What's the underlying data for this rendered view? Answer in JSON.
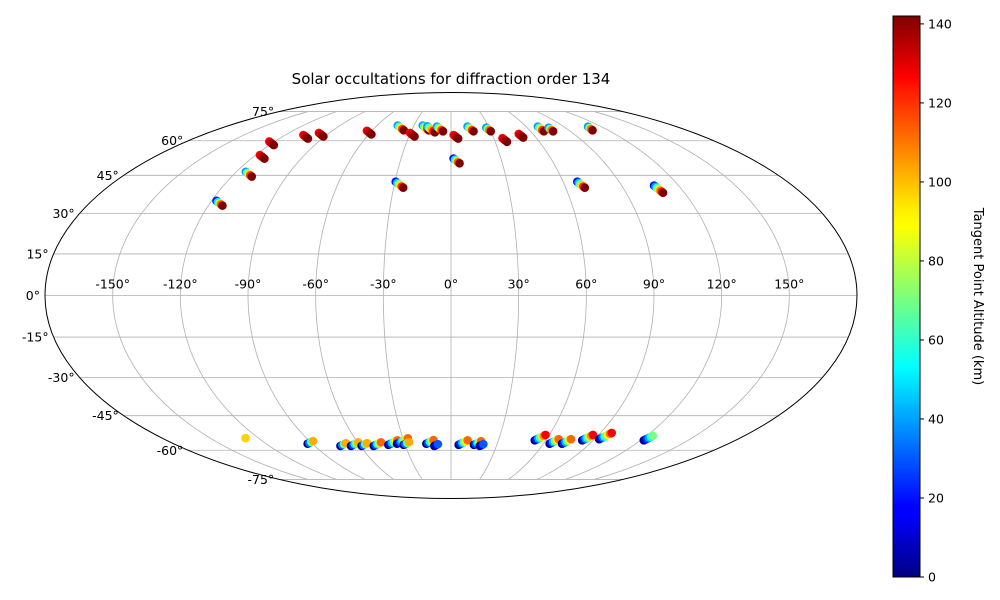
{
  "chart_data": {
    "type": "scatter",
    "projection": "mollweide",
    "title": "Solar occultations for diffraction order 134",
    "x_tick_labels": [
      "-150°",
      "-120°",
      "-90°",
      "-60°",
      "-30°",
      "0°",
      "30°",
      "60°",
      "90°",
      "120°",
      "150°"
    ],
    "x_ticks": [
      -150,
      -120,
      -90,
      -60,
      -30,
      0,
      30,
      60,
      90,
      120,
      150
    ],
    "y_tick_labels": [
      "-75°",
      "-60°",
      "-45°",
      "-30°",
      "-15°",
      "0°",
      "15°",
      "30°",
      "45°",
      "60°",
      "75°"
    ],
    "y_ticks": [
      -75,
      -60,
      -45,
      -30,
      -15,
      0,
      15,
      30,
      45,
      60,
      75
    ],
    "grid": true,
    "colorbar": {
      "label": "Tangent Point Altitude (km)",
      "colormap": "jet",
      "range": [
        0,
        142
      ],
      "tick_values": [
        0,
        20,
        40,
        60,
        80,
        100,
        120,
        140
      ],
      "tick_labels": [
        "0",
        "20",
        "40",
        "60",
        "80",
        "100",
        "120",
        "140"
      ]
    },
    "north_clusters": [
      {
        "lon": -117,
        "lat": 58,
        "alt_range": [
          125,
          142
        ],
        "n": 4
      },
      {
        "lon": -112,
        "lat": 52,
        "alt_range": [
          125,
          142
        ],
        "n": 4
      },
      {
        "lon": -109,
        "lat": 44.5,
        "alt_range": [
          40,
          142
        ],
        "n": 5
      },
      {
        "lon": -113,
        "lat": 33,
        "alt_range": [
          20,
          142
        ],
        "n": 5
      },
      {
        "lon": -100,
        "lat": 61,
        "alt_range": [
          125,
          142
        ],
        "n": 4
      },
      {
        "lon": -91,
        "lat": 62,
        "alt_range": [
          125,
          142
        ],
        "n": 4
      },
      {
        "lon": -58,
        "lat": 63,
        "alt_range": [
          125,
          142
        ],
        "n": 4
      },
      {
        "lon": -36,
        "lat": 65,
        "alt_range": [
          40,
          142
        ],
        "n": 5
      },
      {
        "lon": -26,
        "lat": 62,
        "alt_range": [
          125,
          142
        ],
        "n": 4
      },
      {
        "lon": -25,
        "lat": 40,
        "alt_range": [
          20,
          142
        ],
        "n": 6
      },
      {
        "lon": -17,
        "lat": 65,
        "alt_range": [
          40,
          142
        ],
        "n": 5
      },
      {
        "lon": -12,
        "lat": 64,
        "alt_range": [
          40,
          142
        ],
        "n": 6
      },
      {
        "lon": -6,
        "lat": 64.5,
        "alt_range": [
          40,
          142
        ],
        "n": 5
      },
      {
        "lon": 5,
        "lat": 61,
        "alt_range": [
          125,
          142
        ],
        "n": 4
      },
      {
        "lon": 5,
        "lat": 50,
        "alt_range": [
          20,
          142
        ],
        "n": 5
      },
      {
        "lon": 17,
        "lat": 64.5,
        "alt_range": [
          40,
          142
        ],
        "n": 5
      },
      {
        "lon": 30,
        "lat": 64.5,
        "alt_range": [
          40,
          142
        ],
        "n": 4
      },
      {
        "lon": 38,
        "lat": 59.5,
        "alt_range": [
          125,
          142
        ],
        "n": 4
      },
      {
        "lon": 51,
        "lat": 61.5,
        "alt_range": [
          125,
          142
        ],
        "n": 4
      },
      {
        "lon": 70,
        "lat": 64.5,
        "alt_range": [
          40,
          142
        ],
        "n": 5
      },
      {
        "lon": 77,
        "lat": 64.5,
        "alt_range": [
          40,
          142
        ],
        "n": 4
      },
      {
        "lon": 70,
        "lat": 40,
        "alt_range": [
          20,
          142
        ],
        "n": 6
      },
      {
        "lon": 109,
        "lat": 38,
        "alt_range": [
          20,
          142
        ],
        "n": 7
      },
      {
        "lon": 108,
        "lat": 65,
        "alt_range": [
          40,
          142
        ],
        "n": 4
      }
    ],
    "south_clusters": [
      {
        "lon": -128,
        "lat": -54.5,
        "alt_range": [
          95,
          110
        ],
        "n": 1
      },
      {
        "lon": -93,
        "lat": -57,
        "alt_range": [
          0,
          100
        ],
        "n": 4
      },
      {
        "lon": -73,
        "lat": -58,
        "alt_range": [
          0,
          100
        ],
        "n": 4
      },
      {
        "lon": -66,
        "lat": -58,
        "alt_range": [
          0,
          100
        ],
        "n": 5
      },
      {
        "lon": -59,
        "lat": -58,
        "alt_range": [
          0,
          100
        ],
        "n": 4
      },
      {
        "lon": -51,
        "lat": -58,
        "alt_range": [
          0,
          110
        ],
        "n": 5
      },
      {
        "lon": -41,
        "lat": -57.5,
        "alt_range": [
          0,
          110
        ],
        "n": 6
      },
      {
        "lon": -35,
        "lat": -57,
        "alt_range": [
          0,
          110
        ],
        "n": 7
      },
      {
        "lon": -31,
        "lat": -57.5,
        "alt_range": [
          0,
          100
        ],
        "n": 4
      },
      {
        "lon": -16,
        "lat": -57,
        "alt_range": [
          0,
          110
        ],
        "n": 5
      },
      {
        "lon": -11,
        "lat": -58,
        "alt_range": [
          0,
          30
        ],
        "n": 3
      },
      {
        "lon": 5,
        "lat": -57.5,
        "alt_range": [
          0,
          110
        ],
        "n": 6
      },
      {
        "lon": 15,
        "lat": -57.5,
        "alt_range": [
          0,
          110
        ],
        "n": 5
      },
      {
        "lon": 19,
        "lat": -58,
        "alt_range": [
          0,
          30
        ],
        "n": 3
      },
      {
        "lon": 53,
        "lat": -55.5,
        "alt_range": [
          0,
          125
        ],
        "n": 7
      },
      {
        "lon": 64,
        "lat": -57,
        "alt_range": [
          0,
          110
        ],
        "n": 6
      },
      {
        "lon": 72,
        "lat": -57,
        "alt_range": [
          0,
          110
        ],
        "n": 6
      },
      {
        "lon": 83,
        "lat": -55.5,
        "alt_range": [
          0,
          125
        ],
        "n": 7
      },
      {
        "lon": 93,
        "lat": -55,
        "alt_range": [
          0,
          125
        ],
        "n": 8
      },
      {
        "lon": 122,
        "lat": -55.5,
        "alt_range": [
          0,
          70
        ],
        "n": 6
      }
    ]
  }
}
